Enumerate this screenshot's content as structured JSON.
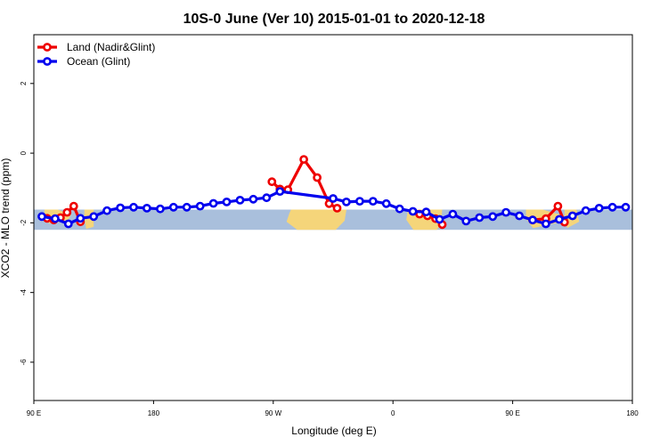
{
  "chart_data": {
    "type": "line",
    "title": "10S-0 June (Ver 10)   2015-01-01 to 2020-12-18",
    "xlabel": "Longitude (deg E)",
    "ylabel": "XCO2 - MLO trend (ppm)",
    "xlim": [
      90,
      540
    ],
    "ylim": [
      -7.1,
      3.4
    ],
    "x_ticks": [
      {
        "value": 90,
        "label": "90 E"
      },
      {
        "value": 180,
        "label": "180"
      },
      {
        "value": 270,
        "label": "90 W"
      },
      {
        "value": 360,
        "label": "0"
      },
      {
        "value": 450,
        "label": "90 E"
      },
      {
        "value": 540,
        "label": "180"
      }
    ],
    "y_ticks": [
      {
        "value": 2,
        "label": "2"
      },
      {
        "value": 0,
        "label": "0"
      },
      {
        "value": -2,
        "label": "-2"
      },
      {
        "value": -4,
        "label": "-4"
      },
      {
        "value": -6,
        "label": "-6"
      }
    ],
    "map_band": {
      "lat_range": [
        -10,
        0
      ],
      "y_range": [
        -2.2,
        -1.62
      ]
    },
    "legend_position": "top-left",
    "grid": false,
    "series": [
      {
        "name": "Land (Nadir&Glint)",
        "color": "#ee0000",
        "segments": [
          [
            [
              100,
              -1.87
            ],
            [
              105,
              -1.92
            ],
            [
              110,
              -1.85
            ],
            [
              115,
              -1.7
            ],
            [
              120,
              -1.52
            ],
            [
              125,
              -1.97
            ]
          ],
          [
            [
              269,
              -0.82
            ],
            [
              275,
              -1.03
            ],
            [
              281,
              -1.05
            ],
            [
              293,
              -0.18
            ],
            [
              303,
              -0.7
            ],
            [
              312,
              -1.45
            ],
            [
              318,
              -1.58
            ]
          ],
          [
            [
              380,
              -1.75
            ],
            [
              386,
              -1.8
            ],
            [
              392,
              -1.88
            ],
            [
              397,
              -2.05
            ]
          ],
          [
            [
              465,
              -1.92
            ],
            [
              475,
              -1.88
            ],
            [
              484,
              -1.52
            ],
            [
              489,
              -1.98
            ]
          ]
        ]
      },
      {
        "name": "Ocean (Glint)",
        "color": "#0000ee",
        "segments": [
          [
            [
              96,
              -1.82
            ],
            [
              106,
              -1.88
            ],
            [
              116,
              -2.03
            ],
            [
              125,
              -1.87
            ],
            [
              135,
              -1.82
            ],
            [
              145,
              -1.65
            ],
            [
              155,
              -1.57
            ],
            [
              165,
              -1.55
            ],
            [
              175,
              -1.58
            ],
            [
              185,
              -1.6
            ],
            [
              195,
              -1.55
            ],
            [
              205,
              -1.55
            ],
            [
              215,
              -1.52
            ],
            [
              225,
              -1.44
            ],
            [
              235,
              -1.4
            ],
            [
              245,
              -1.35
            ],
            [
              255,
              -1.32
            ],
            [
              265,
              -1.28
            ],
            [
              275,
              -1.1
            ],
            [
              315,
              -1.3
            ],
            [
              325,
              -1.4
            ],
            [
              335,
              -1.38
            ],
            [
              345,
              -1.38
            ],
            [
              355,
              -1.45
            ],
            [
              365,
              -1.6
            ],
            [
              375,
              -1.67
            ],
            [
              385,
              -1.69
            ],
            [
              395,
              -1.9
            ],
            [
              405,
              -1.75
            ],
            [
              415,
              -1.95
            ],
            [
              425,
              -1.85
            ],
            [
              435,
              -1.82
            ],
            [
              445,
              -1.7
            ],
            [
              455,
              -1.8
            ],
            [
              465,
              -1.92
            ],
            [
              475,
              -2.03
            ],
            [
              485,
              -1.9
            ],
            [
              495,
              -1.8
            ],
            [
              505,
              -1.65
            ],
            [
              515,
              -1.58
            ],
            [
              525,
              -1.55
            ],
            [
              535,
              -1.55
            ]
          ]
        ]
      }
    ]
  }
}
